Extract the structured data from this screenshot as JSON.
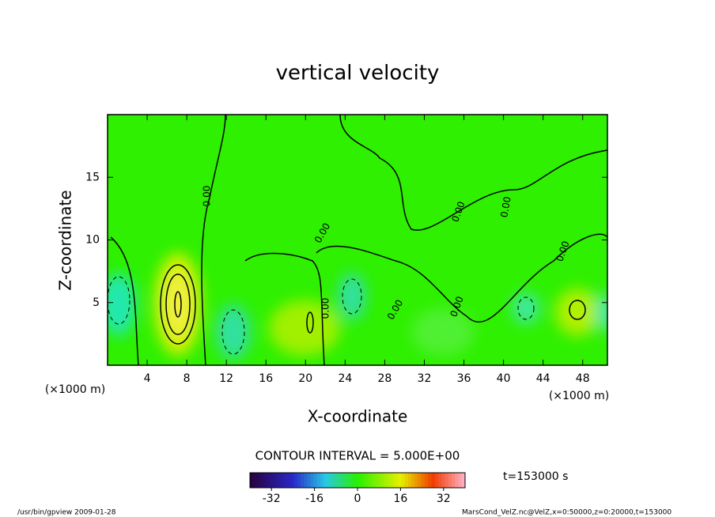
{
  "chart_data": {
    "type": "contour",
    "title": "vertical velocity",
    "x_label": "X-coordinate",
    "y_label": "Z-coordinate",
    "x_unit": "(×1000 m)",
    "y_unit": "(×1000 m)",
    "xlim": [
      0,
      50.5
    ],
    "ylim": [
      0,
      20
    ],
    "xticks": [
      4,
      8,
      12,
      16,
      20,
      24,
      28,
      32,
      36,
      40,
      44,
      48
    ],
    "yticks": [
      5,
      10,
      15
    ],
    "contour_labels": [
      "0.00",
      "0.00",
      "0.00",
      "0.00",
      "0.00",
      "0.00",
      "0.00",
      "0.00"
    ],
    "contour_interval_label": "CONTOUR INTERVAL = 5.000E+00",
    "colorbar": {
      "lim": [
        -40,
        40
      ],
      "ticks": [
        -32,
        -16,
        0,
        16,
        32
      ]
    },
    "time_label": "t=153000 s",
    "footer_left": "/usr/bin/gpview  2009-01-28",
    "footer_right": "MarsCond_VelZ.nc@VelZ,x=0:50000,z=0:20000,t=153000"
  }
}
